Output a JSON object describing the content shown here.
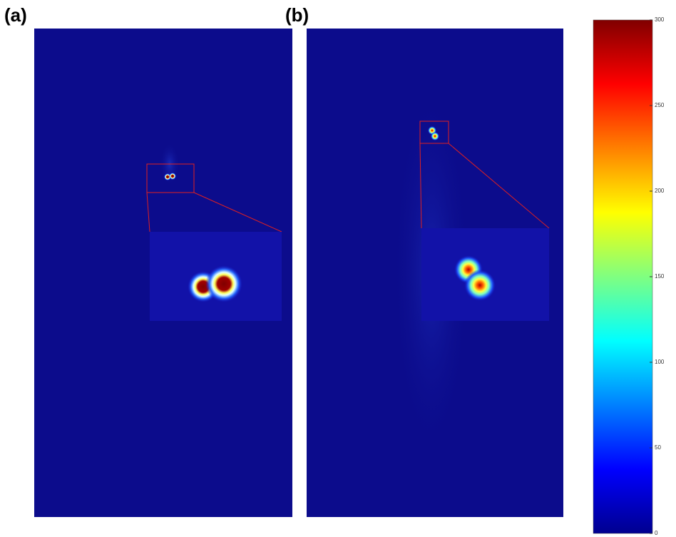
{
  "chart_data": {
    "type": "image",
    "panels": [
      {
        "label": "(a)"
      },
      {
        "label": "(b)"
      }
    ],
    "colorbar": {
      "ylim": [
        0,
        300
      ],
      "yticks": [
        0,
        50,
        100,
        150,
        200,
        250,
        300
      ],
      "colormap": [
        "#00008f",
        "#0000ff",
        "#0080ff",
        "#00ffff",
        "#80ff80",
        "#ffff00",
        "#ff8000",
        "#ff0000",
        "#800000"
      ]
    }
  }
}
